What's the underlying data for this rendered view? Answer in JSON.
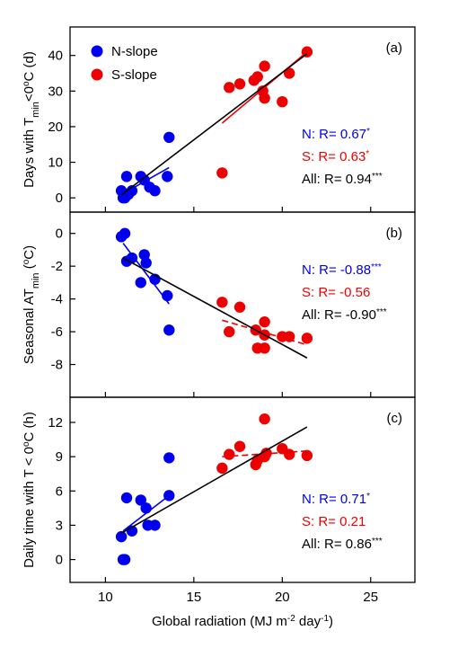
{
  "figure": {
    "xlabel_main": "Global radiation (MJ m",
    "xlabel_sup": "-2",
    "xlabel_mid": " day",
    "xlabel_sup2": "-1",
    "xlabel_end": ")"
  },
  "legend": [
    {
      "label": "N-slope",
      "color": "#0000ee"
    },
    {
      "label": "S-slope",
      "color": "#ee0000"
    }
  ],
  "colors": {
    "north": "#0000ee",
    "south": "#ee0000",
    "all": "#000000"
  },
  "chart_data": [
    {
      "type": "scatter",
      "panel_label": "(a)",
      "ylabel_parts": [
        "Days with T",
        "min",
        "<0",
        "o",
        "C (d)"
      ],
      "xlim": [
        8,
        27.5
      ],
      "ylim": [
        -4,
        48
      ],
      "xticks": [
        10,
        15,
        20,
        25
      ],
      "yticks": [
        0,
        10,
        20,
        30,
        40
      ],
      "series": [
        {
          "name": "N-slope",
          "points": [
            [
              10.9,
              2
            ],
            [
              11.0,
              0
            ],
            [
              11.1,
              0
            ],
            [
              11.2,
              6
            ],
            [
              11.3,
              1
            ],
            [
              11.5,
              2
            ],
            [
              12.0,
              6
            ],
            [
              12.2,
              5
            ],
            [
              12.5,
              3
            ],
            [
              12.8,
              2
            ],
            [
              13.5,
              6
            ],
            [
              13.6,
              17
            ]
          ]
        },
        {
          "name": "S-slope",
          "points": [
            [
              16.6,
              7
            ],
            [
              17.0,
              31
            ],
            [
              17.6,
              32
            ],
            [
              18.4,
              33
            ],
            [
              18.6,
              34
            ],
            [
              18.9,
              30
            ],
            [
              19.0,
              28
            ],
            [
              19.0,
              37
            ],
            [
              20.0,
              27
            ],
            [
              20.4,
              35
            ],
            [
              21.4,
              41
            ]
          ]
        }
      ],
      "fits": [
        {
          "group": "N",
          "x": [
            11.0,
            13.6
          ],
          "y": [
            1.2,
            8.5
          ],
          "dash": false
        },
        {
          "group": "S",
          "x": [
            16.6,
            21.4
          ],
          "y": [
            21.0,
            41.0
          ],
          "dash": false
        },
        {
          "group": "All",
          "x": [
            10.9,
            21.4
          ],
          "y": [
            0.8,
            40.5
          ],
          "dash": false
        }
      ],
      "stats": [
        {
          "group": "N",
          "text": "N: R= 0.67",
          "sig": "*"
        },
        {
          "group": "S",
          "text": "S: R= 0.63",
          "sig": "*"
        },
        {
          "group": "All",
          "text": "All: R= 0.94",
          "sig": "***"
        }
      ]
    },
    {
      "type": "scatter",
      "panel_label": "(b)",
      "ylabel_parts": [
        "Seasonal AT",
        "min",
        " (",
        "o",
        "C)"
      ],
      "xlim": [
        8,
        27.5
      ],
      "ylim": [
        -10,
        1.3
      ],
      "xticks": [
        10,
        15,
        20,
        25
      ],
      "yticks": [
        0,
        -2,
        -4,
        -6,
        -8
      ],
      "series": [
        {
          "name": "N-slope",
          "points": [
            [
              10.9,
              -0.2
            ],
            [
              11.1,
              0.0
            ],
            [
              11.2,
              -1.7
            ],
            [
              11.5,
              -1.5
            ],
            [
              12.0,
              -3.0
            ],
            [
              12.2,
              -1.3
            ],
            [
              12.3,
              -1.8
            ],
            [
              12.8,
              -2.8
            ],
            [
              13.5,
              -3.8
            ],
            [
              13.6,
              -5.9
            ]
          ]
        },
        {
          "name": "S-slope",
          "points": [
            [
              16.6,
              -4.2
            ],
            [
              17.0,
              -6.0
            ],
            [
              17.6,
              -4.5
            ],
            [
              18.5,
              -5.9
            ],
            [
              18.6,
              -7.0
            ],
            [
              19.0,
              -7.0
            ],
            [
              19.0,
              -5.4
            ],
            [
              19.0,
              -6.2
            ],
            [
              20.0,
              -6.3
            ],
            [
              20.4,
              -6.3
            ],
            [
              21.4,
              -6.4
            ]
          ]
        }
      ],
      "fits": [
        {
          "group": "N",
          "x": [
            11.0,
            13.6
          ],
          "y": [
            -0.6,
            -4.3
          ],
          "dash": false
        },
        {
          "group": "S",
          "x": [
            16.6,
            21.4
          ],
          "y": [
            -5.3,
            -6.8
          ],
          "dash": true
        },
        {
          "group": "All",
          "x": [
            11.0,
            21.4
          ],
          "y": [
            -1.5,
            -7.6
          ],
          "dash": false
        }
      ],
      "stats": [
        {
          "group": "N",
          "text": "N: R= -0.88",
          "sig": "***"
        },
        {
          "group": "S",
          "text": "S: R= -0.56",
          "sig": ""
        },
        {
          "group": "All",
          "text": "All: R= -0.90",
          "sig": "***"
        }
      ]
    },
    {
      "type": "scatter",
      "panel_label": "(c)",
      "ylabel_parts": [
        "Daily time with T < 0",
        "o",
        "C (h)"
      ],
      "xlim": [
        8,
        27.5
      ],
      "ylim": [
        -2,
        14.2
      ],
      "xticks": [
        10,
        15,
        20,
        25
      ],
      "yticks": [
        0,
        3,
        6,
        9,
        12
      ],
      "series": [
        {
          "name": "N-slope",
          "points": [
            [
              10.9,
              2.0
            ],
            [
              11.0,
              0.0
            ],
            [
              11.1,
              0.0
            ],
            [
              11.2,
              5.4
            ],
            [
              11.5,
              2.5
            ],
            [
              12.0,
              5.2
            ],
            [
              12.3,
              4.5
            ],
            [
              12.4,
              3.0
            ],
            [
              12.8,
              3.0
            ],
            [
              13.6,
              5.6
            ],
            [
              13.6,
              8.9
            ]
          ]
        },
        {
          "name": "S-slope",
          "points": [
            [
              16.6,
              8.0
            ],
            [
              17.0,
              9.2
            ],
            [
              17.6,
              9.9
            ],
            [
              18.5,
              8.3
            ],
            [
              18.6,
              8.7
            ],
            [
              19.0,
              12.3
            ],
            [
              19.0,
              9.0
            ],
            [
              19.1,
              9.3
            ],
            [
              20.0,
              9.7
            ],
            [
              20.4,
              9.2
            ],
            [
              21.4,
              9.1
            ]
          ]
        }
      ],
      "fits": [
        {
          "group": "N",
          "x": [
            11.0,
            13.6
          ],
          "y": [
            2.5,
            5.6
          ],
          "dash": false
        },
        {
          "group": "S",
          "x": [
            16.6,
            21.4
          ],
          "y": [
            9.0,
            9.5
          ],
          "dash": true
        },
        {
          "group": "All",
          "x": [
            10.9,
            21.4
          ],
          "y": [
            2.3,
            11.6
          ],
          "dash": false
        }
      ],
      "stats": [
        {
          "group": "N",
          "text": "N: R= 0.71",
          "sig": "*"
        },
        {
          "group": "S",
          "text": "S: R= 0.21",
          "sig": ""
        },
        {
          "group": "All",
          "text": "All: R= 0.86",
          "sig": "***"
        }
      ]
    }
  ]
}
